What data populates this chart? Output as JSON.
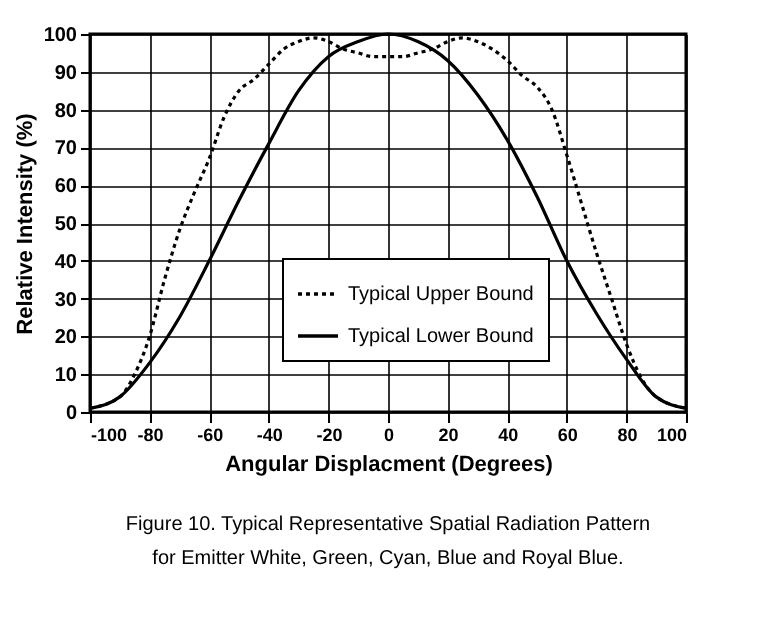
{
  "chart_data": {
    "type": "line",
    "xlabel": "Angular Displacment (Degrees)",
    "ylabel": "Relative Intensity (%)",
    "annotations": [
      "Figure 10.  Typical Representative Spatial Radiation Pattern",
      "for Emitter White, Green, Cyan, Blue and Royal Blue."
    ],
    "xlim": [
      -100,
      100
    ],
    "xticks": [
      -100,
      -80,
      -60,
      -40,
      -20,
      0,
      20,
      40,
      60,
      80,
      100
    ],
    "ylim": [
      0,
      100
    ],
    "yticks": [
      0,
      10,
      20,
      30,
      40,
      50,
      60,
      70,
      80,
      90,
      100
    ],
    "grid": true,
    "legend": "bottom",
    "marker": "none",
    "series": [
      {
        "name": "Typical Upper Bound",
        "color": "#000000",
        "line_style": "dotted",
        "x": [
          -100,
          -90,
          -85,
          -80,
          -75,
          -70,
          -65,
          -60,
          -55,
          -50,
          -45,
          -40,
          -35,
          -30,
          -25,
          -20,
          -15,
          -10,
          -5,
          0,
          5,
          10,
          15,
          20,
          25,
          30,
          35,
          40,
          45,
          50,
          55,
          60,
          65,
          70,
          75,
          80,
          85,
          90,
          100
        ],
        "values": [
          1,
          4,
          10,
          20,
          35,
          48,
          58,
          67,
          78,
          85,
          88,
          92,
          96,
          98,
          99,
          98,
          96,
          95,
          94,
          94,
          94,
          95,
          96,
          98,
          99,
          98,
          96,
          93,
          89,
          86,
          80,
          68,
          55,
          42,
          30,
          18,
          9,
          4,
          1
        ]
      },
      {
        "name": "Typical Lower Bound",
        "color": "#000000",
        "line_style": "solid",
        "x": [
          -100,
          -90,
          -80,
          -70,
          -60,
          -50,
          -40,
          -30,
          -20,
          -10,
          0,
          10,
          20,
          30,
          40,
          50,
          60,
          70,
          80,
          90,
          100
        ],
        "values": [
          1,
          4,
          13,
          25,
          40,
          56,
          71,
          85,
          94,
          98,
          100,
          98,
          93,
          84,
          72,
          57,
          40,
          26,
          14,
          4,
          1
        ]
      }
    ]
  }
}
